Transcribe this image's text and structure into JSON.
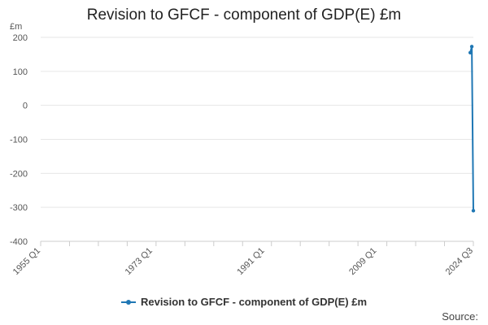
{
  "chart_data": {
    "type": "line",
    "title": "Revision to GFCF - component of GDP(E) £m",
    "ylabel": "£m",
    "xlabel": "",
    "ylim": [
      -400,
      200
    ],
    "yticks": [
      200,
      100,
      0,
      -100,
      -200,
      -300,
      -400
    ],
    "xlim": [
      1955.0,
      2024.5
    ],
    "xticks": [
      {
        "label": "1955 Q1",
        "x": 1955.0
      },
      {
        "label": "1973 Q1",
        "x": 1973.0
      },
      {
        "label": "1991 Q1",
        "x": 1991.0
      },
      {
        "label": "2009 Q1",
        "x": 2009.0
      },
      {
        "label": "2024 Q3",
        "x": 2024.5
      }
    ],
    "grid": true,
    "legend_position": "bottom",
    "series": [
      {
        "name": "Revision to GFCF - component of GDP(E) £m",
        "color": "#1f77b4",
        "points": [
          {
            "period": "2024 Q1",
            "x": 2024.0,
            "y": 155
          },
          {
            "period": "2024 Q2",
            "x": 2024.25,
            "y": 173
          },
          {
            "period": "2024 Q3",
            "x": 2024.5,
            "y": -310
          }
        ]
      }
    ]
  },
  "legend": {
    "label": "Revision to GFCF - component of GDP(E) £m"
  },
  "footer": {
    "source_label": "Source:"
  }
}
